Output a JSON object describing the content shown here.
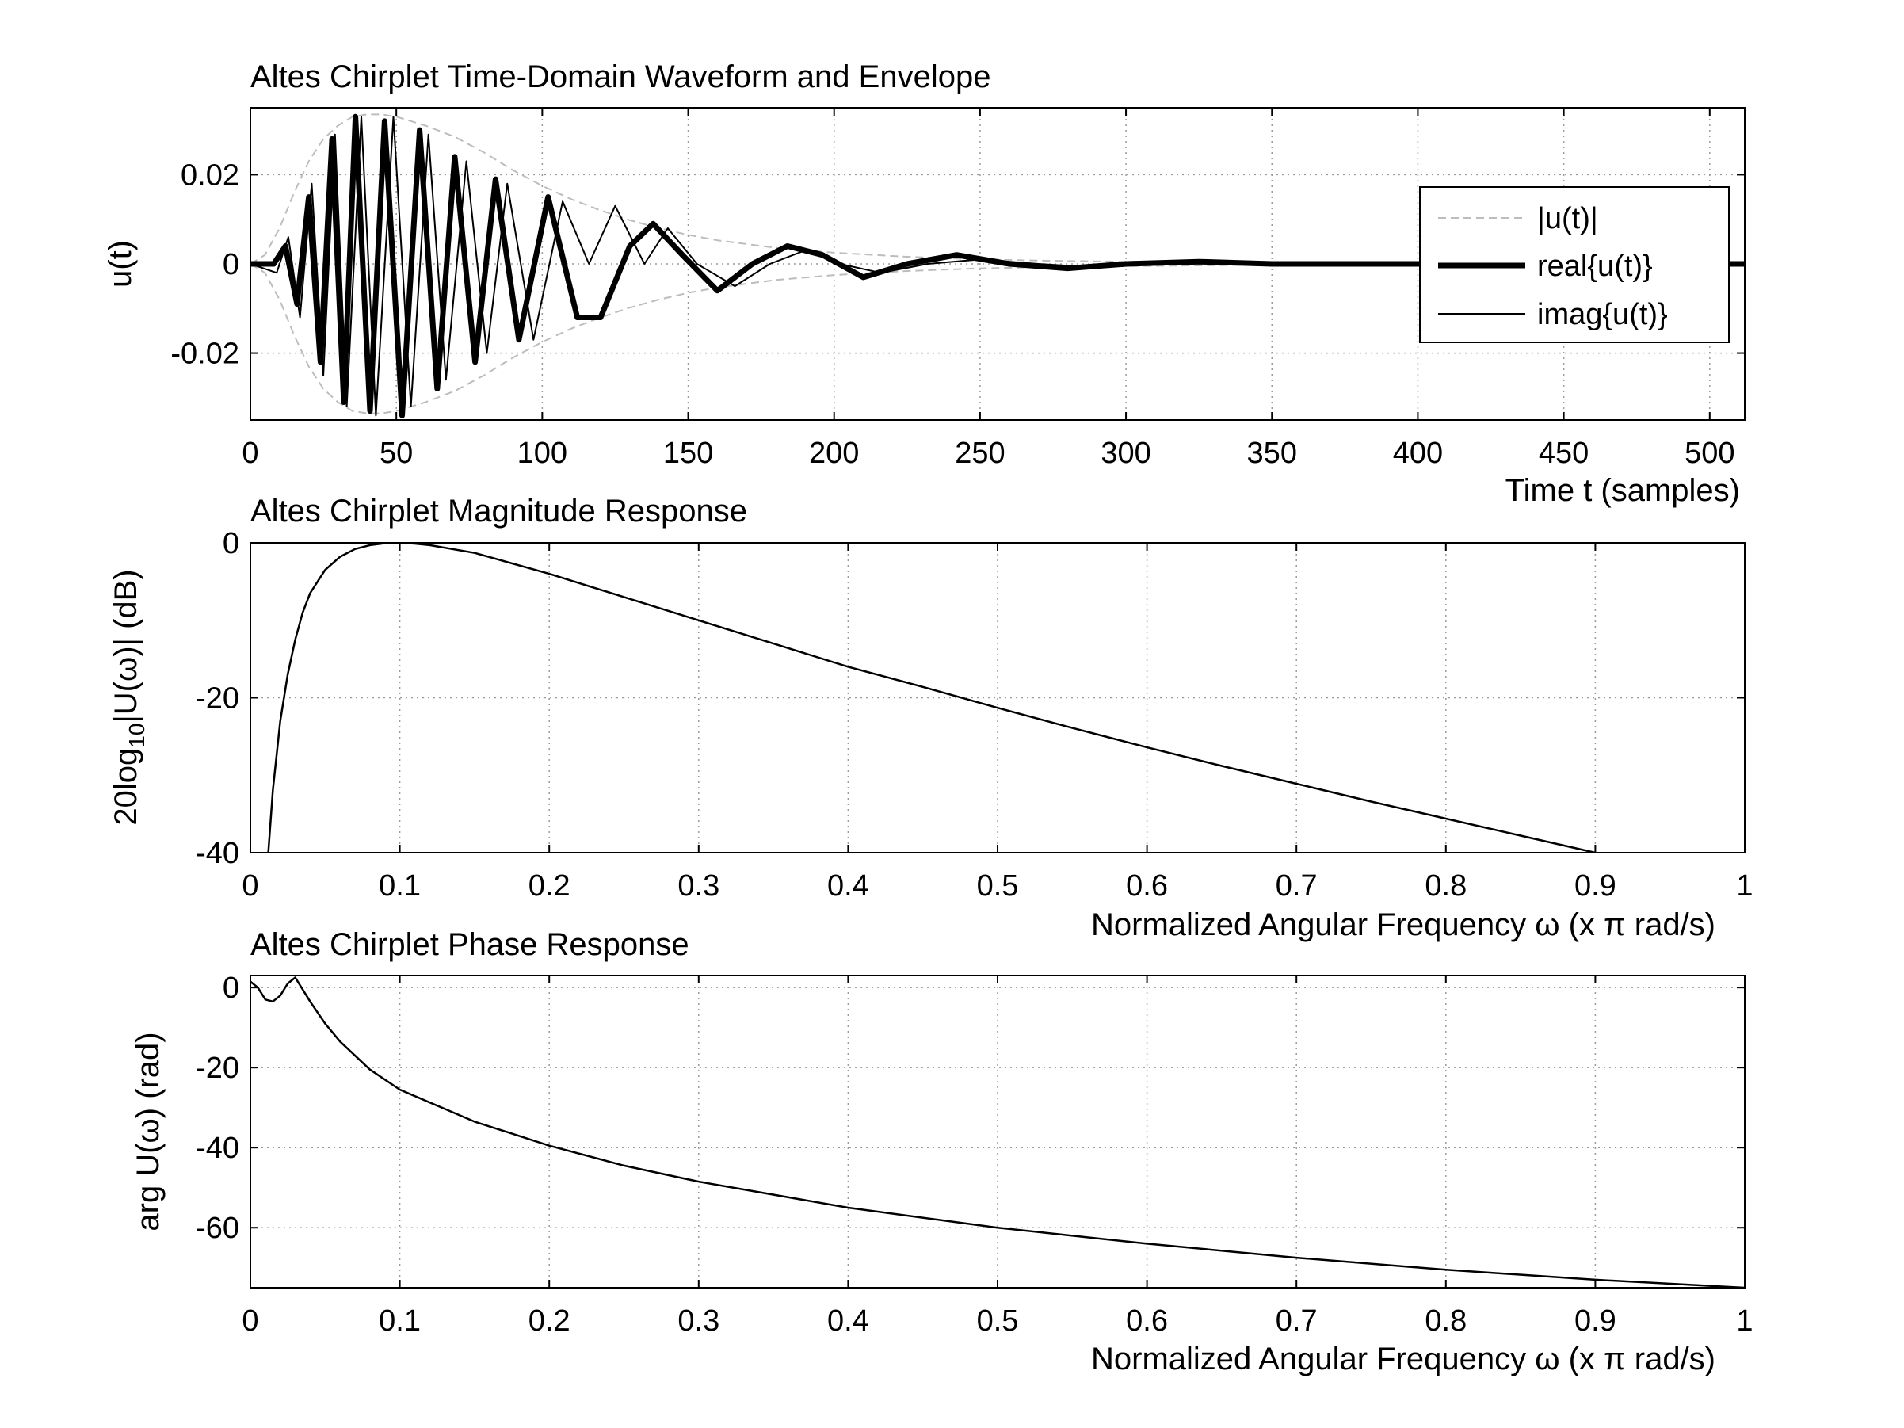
{
  "figure": {
    "background": "#ffffff",
    "grid": true,
    "grid_color": "#9a9a9a"
  },
  "chart_data": [
    {
      "type": "line",
      "title": "Altes Chirplet Time-Domain Waveform and Envelope",
      "xlabel": "Time t (samples)",
      "ylabel": "u(t)",
      "xlim": [
        0,
        512
      ],
      "ylim": [
        -0.035,
        0.035
      ],
      "xticks": [
        0,
        50,
        100,
        150,
        200,
        250,
        300,
        350,
        400,
        450,
        500
      ],
      "xtick_labels": [
        "0",
        "50",
        "100",
        "150",
        "200",
        "250",
        "300",
        "350",
        "400",
        "450",
        "500"
      ],
      "yticks": [
        0.02,
        0,
        -0.02
      ],
      "ytick_labels": [
        "0.02",
        "0",
        "-0.02"
      ],
      "legend": {
        "location": "right",
        "entries": [
          {
            "label": "|u(t)|",
            "style": "dashed",
            "color": "#bdbdbd"
          },
          {
            "label": "real{u(t)}",
            "style": "thick",
            "color": "#000000"
          },
          {
            "label": "imag{u(t)}",
            "style": "thin",
            "color": "#000000"
          }
        ]
      },
      "series": [
        {
          "name": "|u(t)|",
          "x": [
            0,
            5,
            10,
            15,
            20,
            25,
            30,
            35,
            40,
            45,
            50,
            60,
            70,
            80,
            90,
            100,
            110,
            120,
            130,
            140,
            150,
            160,
            180,
            200,
            225,
            250,
            275,
            300,
            350,
            400,
            450,
            512
          ],
          "y": [
            0.0,
            0.002,
            0.008,
            0.016,
            0.023,
            0.028,
            0.031,
            0.033,
            0.0335,
            0.0335,
            0.033,
            0.031,
            0.0285,
            0.025,
            0.021,
            0.0175,
            0.0145,
            0.012,
            0.0098,
            0.008,
            0.0065,
            0.0053,
            0.0036,
            0.0025,
            0.0016,
            0.001,
            0.0007,
            0.0005,
            0.0002,
            0.0001,
            5e-05,
            0.0
          ]
        },
        {
          "name": "real{u(t)}",
          "x": [
            0,
            8,
            12,
            16,
            20,
            24,
            28,
            32,
            36,
            41,
            46,
            52,
            58,
            64,
            70,
            77,
            84,
            92,
            102,
            112,
            120,
            130,
            138,
            148,
            160,
            172,
            184,
            196,
            210,
            225,
            242,
            260,
            280,
            300,
            325,
            350,
            400,
            512
          ],
          "y": [
            0.0,
            0.0,
            0.004,
            -0.009,
            0.015,
            -0.022,
            0.028,
            -0.031,
            0.033,
            -0.033,
            0.032,
            -0.034,
            0.03,
            -0.028,
            0.024,
            -0.022,
            0.019,
            -0.017,
            0.015,
            -0.012,
            -0.012,
            0.004,
            0.009,
            0.002,
            -0.006,
            0.0,
            0.004,
            0.002,
            -0.003,
            0.0,
            0.002,
            0.0,
            -0.001,
            0.0,
            0.0005,
            0.0,
            0.0,
            0.0
          ]
        },
        {
          "name": "imag{u(t)}",
          "x": [
            0,
            9,
            13,
            17,
            21,
            25,
            29,
            33,
            38,
            43,
            49,
            55,
            61,
            67,
            74,
            81,
            88,
            97,
            107,
            116,
            125,
            135,
            143,
            153,
            166,
            178,
            190,
            202,
            216,
            232,
            250,
            270,
            290,
            312,
            340,
            400,
            512
          ],
          "y": [
            0.0,
            -0.002,
            0.006,
            -0.012,
            0.018,
            -0.025,
            0.029,
            -0.032,
            0.033,
            -0.034,
            0.033,
            -0.032,
            0.029,
            -0.026,
            0.023,
            -0.02,
            0.018,
            -0.017,
            0.014,
            0.0,
            0.013,
            0.0,
            0.008,
            0.0,
            -0.005,
            0.0,
            0.003,
            0.0,
            -0.002,
            0.0,
            0.001,
            0.0,
            -0.0008,
            0.0,
            0.0003,
            0.0,
            0.0
          ]
        }
      ]
    },
    {
      "type": "line",
      "title": "Altes Chirplet Magnitude Response",
      "xlabel": "Normalized Angular Frequency  ω (x π rad/s)",
      "ylabel": "20log10|U(ω)| (dB)",
      "xlim": [
        0,
        1
      ],
      "ylim": [
        -40,
        0
      ],
      "xticks": [
        0,
        0.1,
        0.2,
        0.3,
        0.4,
        0.5,
        0.6,
        0.7,
        0.8,
        0.9,
        1
      ],
      "xtick_labels": [
        "0",
        "0.1",
        "0.2",
        "0.3",
        "0.4",
        "0.5",
        "0.6",
        "0.7",
        "0.8",
        "0.9",
        "1"
      ],
      "yticks": [
        0,
        -20,
        -40
      ],
      "ytick_labels": [
        "0",
        "-20",
        "-40"
      ],
      "series": [
        {
          "x": [
            0.012,
            0.015,
            0.02,
            0.025,
            0.03,
            0.035,
            0.04,
            0.05,
            0.06,
            0.07,
            0.08,
            0.09,
            0.1,
            0.11,
            0.12,
            0.15,
            0.2,
            0.25,
            0.3,
            0.35,
            0.4,
            0.45,
            0.5,
            0.55,
            0.6,
            0.65,
            0.7,
            0.75,
            0.8,
            0.85,
            0.9
          ],
          "y": [
            -40,
            -32,
            -23,
            -17,
            -12.5,
            -9,
            -6.5,
            -3.5,
            -1.8,
            -0.8,
            -0.3,
            -0.05,
            0,
            -0.1,
            -0.3,
            -1.3,
            -4,
            -7,
            -10,
            -13,
            -16,
            -18.6,
            -21.3,
            -23.9,
            -26.4,
            -28.8,
            -31.1,
            -33.4,
            -35.6,
            -37.8,
            -40
          ]
        }
      ]
    },
    {
      "type": "line",
      "title": "Altes Chirplet Phase Response",
      "xlabel": "Normalized Angular Frequency  ω (x π rad/s)",
      "ylabel": "arg U(ω) (rad)",
      "xlim": [
        0,
        1
      ],
      "ylim": [
        -75,
        3
      ],
      "xticks": [
        0,
        0.1,
        0.2,
        0.3,
        0.4,
        0.5,
        0.6,
        0.7,
        0.8,
        0.9,
        1
      ],
      "xtick_labels": [
        "0",
        "0.1",
        "0.2",
        "0.3",
        "0.4",
        "0.5",
        "0.6",
        "0.7",
        "0.8",
        "0.9",
        "1"
      ],
      "yticks": [
        0,
        -20,
        -40,
        -60
      ],
      "ytick_labels": [
        "0",
        "-20",
        "-40",
        "-60"
      ],
      "series": [
        {
          "x": [
            0,
            0.005,
            0.01,
            0.015,
            0.02,
            0.025,
            0.03,
            0.04,
            0.05,
            0.06,
            0.08,
            0.1,
            0.15,
            0.2,
            0.25,
            0.3,
            0.4,
            0.5,
            0.6,
            0.7,
            0.8,
            0.9,
            1.0
          ],
          "y": [
            1.5,
            0,
            -3,
            -3.5,
            -2,
            1,
            2.5,
            -3.5,
            -9,
            -13.5,
            -20.5,
            -25.5,
            -33.5,
            -39.5,
            -44.5,
            -48.5,
            -55,
            -60,
            -64,
            -67.5,
            -70.5,
            -73,
            -75
          ]
        }
      ]
    }
  ]
}
